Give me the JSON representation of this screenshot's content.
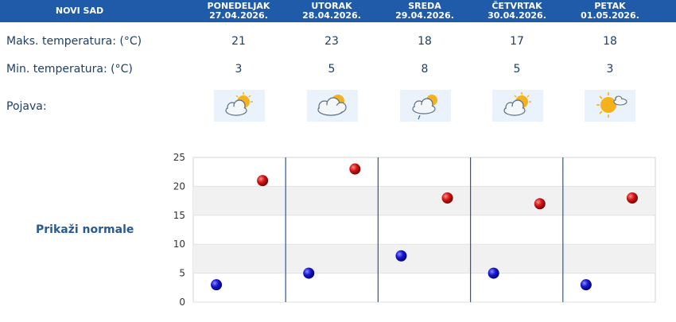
{
  "header": {
    "city": "NOVI SAD",
    "days": [
      {
        "name": "PONEDELJAK",
        "date": "27.04.2026."
      },
      {
        "name": "UTORAK",
        "date": "28.04.2026."
      },
      {
        "name": "SREDA",
        "date": "29.04.2026."
      },
      {
        "name": "ČETVRTAK",
        "date": "30.04.2026."
      },
      {
        "name": "PETAK",
        "date": "01.05.2026."
      }
    ]
  },
  "rows": {
    "max_label": "Maks. temperatura: (°C)",
    "min_label": "Min. temperatura: (°C)",
    "pojava_label": "Pojava:",
    "max": [
      "21",
      "23",
      "18",
      "17",
      "18"
    ],
    "min": [
      "3",
      "5",
      "8",
      "5",
      "3"
    ],
    "icons": [
      "partly-cloudy-icon",
      "mostly-cloudy-icon",
      "cloudy-light-rain-icon",
      "partly-cloudy-icon",
      "mostly-sunny-icon"
    ]
  },
  "normale_link": "Prikaži normale",
  "colors": {
    "header_bg": "#1f5ba8",
    "max_dot": "#cc1111",
    "min_dot": "#1111cc",
    "divider": "#1f5ba8"
  },
  "chart_data": {
    "type": "scatter",
    "categories": [
      "27.04.2026.",
      "28.04.2026.",
      "29.04.2026.",
      "30.04.2026.",
      "01.05.2026."
    ],
    "series": [
      {
        "values": [
          21,
          23,
          18,
          17,
          18
        ]
      },
      {
        "values": [
          3,
          5,
          8,
          5,
          3
        ]
      }
    ],
    "ylim": [
      0,
      25
    ],
    "yticks": [
      "0",
      "5",
      "10",
      "15",
      "20",
      "25"
    ]
  }
}
